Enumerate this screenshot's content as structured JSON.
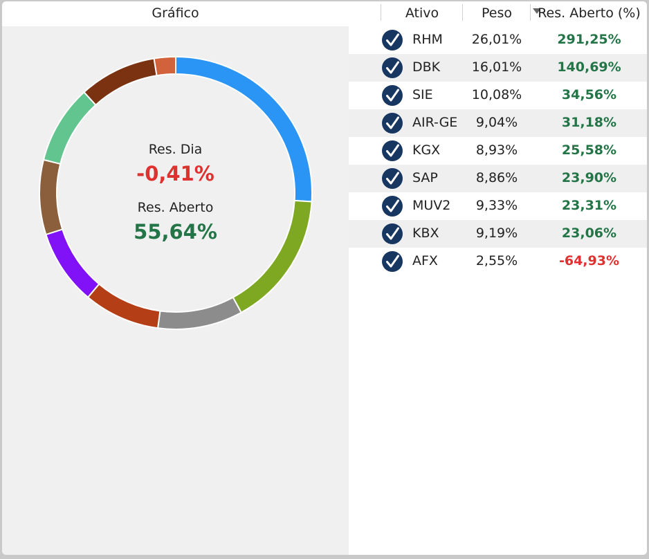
{
  "chart_panel": {
    "title": "Gráfico",
    "res_dia_label": "Res. Dia",
    "res_dia_value": "-0,41%",
    "res_aberto_label": "Res. Aberto",
    "res_aberto_value": "55,64%"
  },
  "table": {
    "columns": [
      "Ativo",
      "Peso",
      "Res. Aberto (%)"
    ],
    "sorted_column": "Res. Aberto (%)",
    "rows": [
      {
        "ativo": "RHM",
        "peso": "26,01%",
        "res": "291,25%",
        "sign": "pos"
      },
      {
        "ativo": "DBK",
        "peso": "16,01%",
        "res": "140,69%",
        "sign": "pos"
      },
      {
        "ativo": "SIE",
        "peso": "10,08%",
        "res": "34,56%",
        "sign": "pos"
      },
      {
        "ativo": "AIR-GE",
        "peso": "9,04%",
        "res": "31,18%",
        "sign": "pos"
      },
      {
        "ativo": "KGX",
        "peso": "8,93%",
        "res": "25,58%",
        "sign": "pos"
      },
      {
        "ativo": "SAP",
        "peso": "8,86%",
        "res": "23,90%",
        "sign": "pos"
      },
      {
        "ativo": "MUV2",
        "peso": "9,33%",
        "res": "23,31%",
        "sign": "pos"
      },
      {
        "ativo": "KBX",
        "peso": "9,19%",
        "res": "23,06%",
        "sign": "pos"
      },
      {
        "ativo": "AFX",
        "peso": "2,55%",
        "res": "-64,93%",
        "sign": "neg"
      }
    ]
  },
  "chart_data": {
    "type": "pie",
    "title": "",
    "categories": [
      "RHM",
      "DBK",
      "SIE",
      "AIR-GE",
      "KGX",
      "SAP",
      "MUV2",
      "KBX",
      "AFX"
    ],
    "values": [
      26.01,
      16.01,
      10.08,
      9.04,
      8.93,
      8.86,
      9.33,
      9.19,
      2.55
    ],
    "colors": [
      "#2a95f5",
      "#7ea822",
      "#8c8c8c",
      "#b43f17",
      "#8112f8",
      "#8b5e3c",
      "#62c48e",
      "#7a3211",
      "#d2623c"
    ]
  },
  "colors": {
    "positive": "#237547",
    "negative": "#e03131",
    "check_icon_bg": "#173761"
  },
  "icons": {
    "row_check": "check-circle-icon",
    "sort": "sort-desc-icon"
  }
}
